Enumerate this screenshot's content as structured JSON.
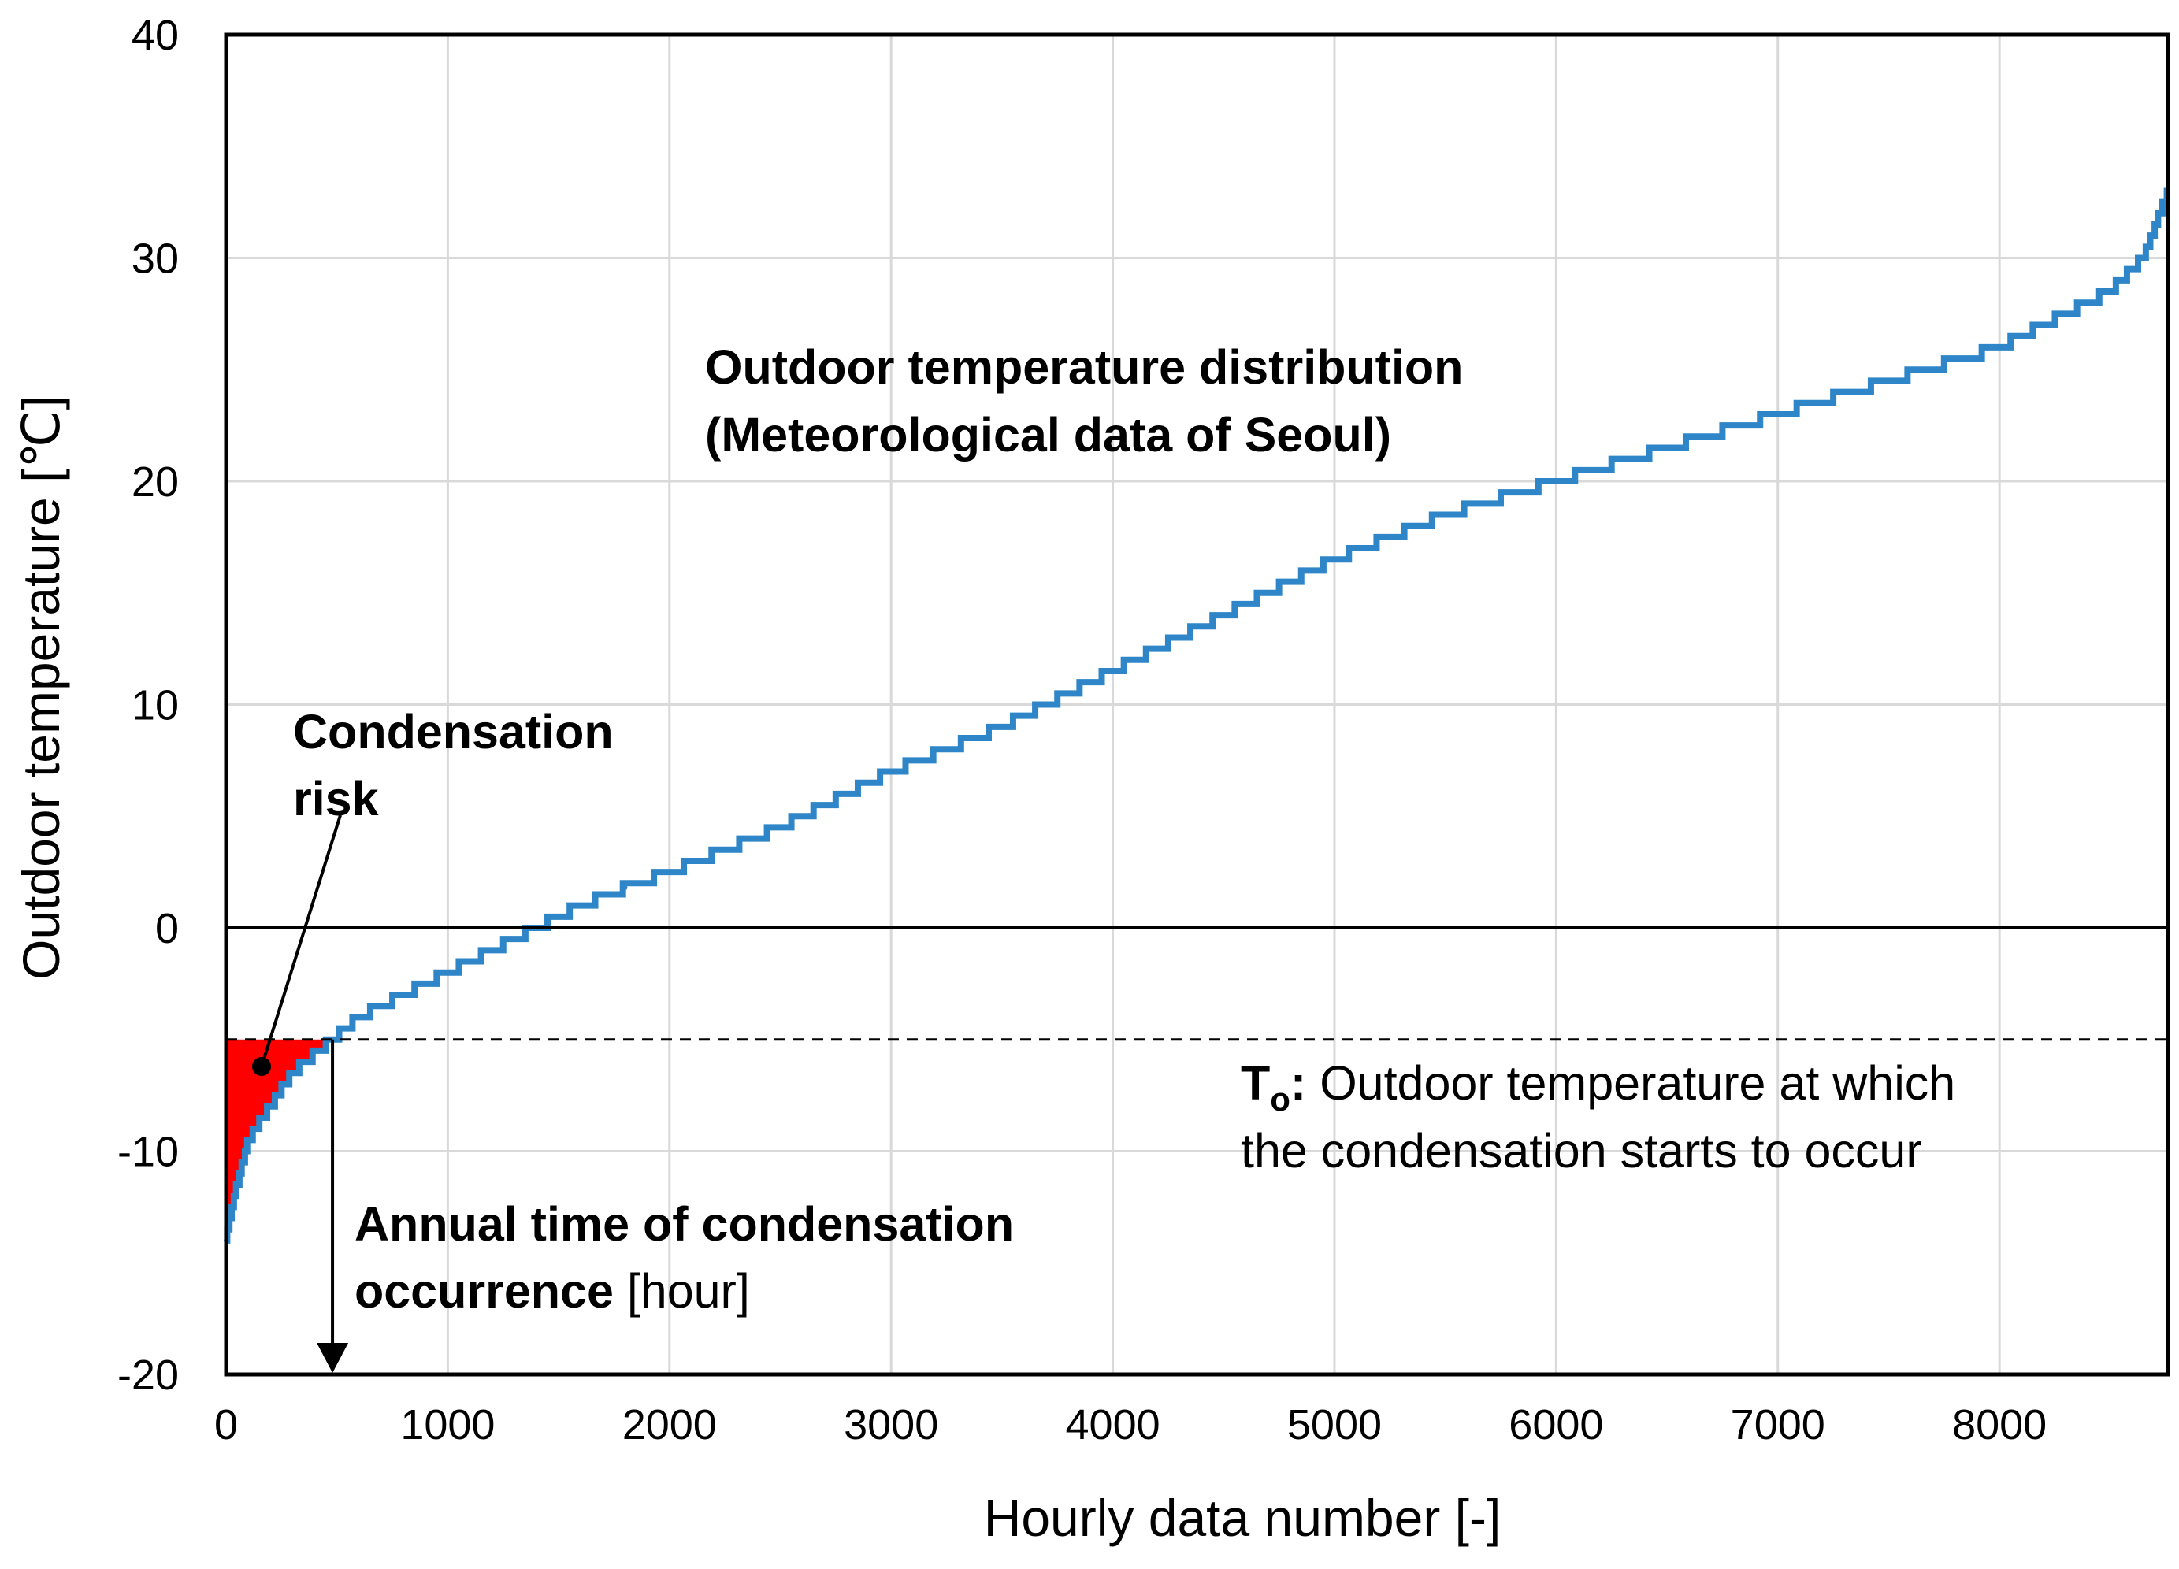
{
  "chart_data": {
    "type": "line",
    "title": "",
    "xlabel": "Hourly data number [-]",
    "ylabel": "Outdoor temperature [℃]",
    "xlim": [
      0,
      8760
    ],
    "ylim": [
      -20,
      40
    ],
    "x_ticks": [
      "0",
      "1000",
      "2000",
      "3000",
      "4000",
      "5000",
      "6000",
      "7000",
      "8000"
    ],
    "y_ticks": [
      "-20",
      "-10",
      "0",
      "10",
      "20",
      "30",
      "40"
    ],
    "grid": true,
    "series": [
      {
        "name": "Outdoor temperature distribution (Meteorological data of Seoul)",
        "color": "#2e86c8",
        "x": [
          0,
          50,
          100,
          200,
          300,
          480,
          600,
          800,
          1000,
          1200,
          1400,
          1600,
          1800,
          2000,
          2500,
          3000,
          3500,
          4000,
          4500,
          5000,
          5500,
          6000,
          6500,
          7000,
          7500,
          8000,
          8300,
          8500,
          8650,
          8760
        ],
        "y": [
          -14,
          -11.5,
          -9.5,
          -8,
          -6.5,
          -5,
          -4,
          -3,
          -2,
          -1,
          0,
          1,
          1.8,
          2.5,
          4.5,
          7,
          9,
          11.5,
          14,
          16.5,
          18.5,
          20,
          21.5,
          23,
          24.5,
          26,
          27.5,
          28.5,
          30,
          33
        ]
      }
    ],
    "threshold": {
      "name": "Tₒ",
      "value": -5
    },
    "condensation_hours": 480,
    "annotations": {
      "curve_label_line1": "Outdoor temperature distribution",
      "curve_label_line2": "(Meteorological data of Seoul)",
      "risk_line1": "Condensation",
      "risk_line2": "risk",
      "annual_line1": "Annual time of condensation",
      "annual_line2_bold": "occurrence",
      "annual_line2_regular": " [hour]",
      "to_symbol": "T",
      "to_subscript": "o",
      "to_colon": ":",
      "to_line1": " Outdoor temperature at which",
      "to_line2": "the condensation starts to occur"
    },
    "colors": {
      "risk_fill": "#ff0000",
      "line": "#2e86c8",
      "grid": "#d9d9d9"
    }
  }
}
